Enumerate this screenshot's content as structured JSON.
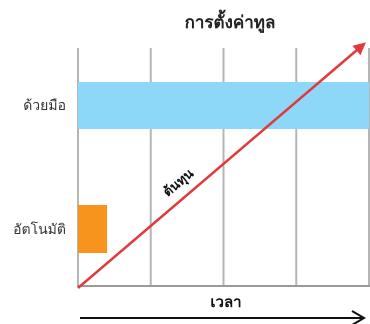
{
  "chart_data": {
    "type": "bar",
    "title": "การตั้งค่าทูล",
    "xlabel": "เวลา",
    "ylabel": "",
    "grid": true,
    "xlim": [
      0,
      4
    ],
    "categories": [
      "ด้วยมือ",
      "อัตโนมัติ"
    ],
    "series": [
      {
        "values": [
          4,
          0.4
        ],
        "colors": [
          "#8dd8f8",
          "#f7941e"
        ]
      }
    ],
    "line": {
      "name": "ต้นทุน",
      "x": [
        0,
        4
      ],
      "y": [
        0,
        1
      ],
      "color": "#e03a3e"
    }
  }
}
